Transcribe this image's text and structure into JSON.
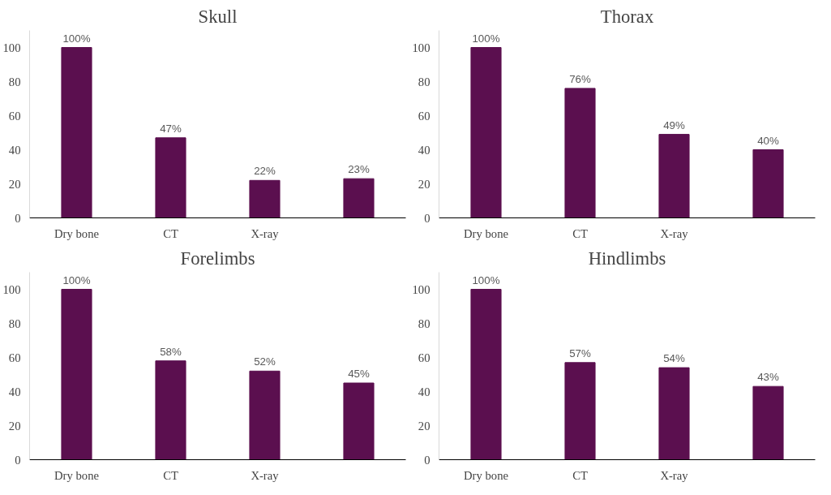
{
  "chart_data": [
    {
      "type": "bar",
      "title": "Skull",
      "categories": [
        "Dry bone",
        "CT",
        "X-ray",
        null
      ],
      "values": [
        100,
        47,
        22,
        23
      ],
      "value_labels": [
        "100%",
        "47%",
        "22%",
        "23%"
      ],
      "color": "#5b0f4f",
      "ylim": [
        0,
        110
      ],
      "yticks": [
        0,
        20,
        40,
        60,
        80,
        100
      ],
      "grid": false
    },
    {
      "type": "bar",
      "title": "Thorax",
      "categories": [
        "Dry bone",
        "CT",
        "X-ray",
        null
      ],
      "values": [
        100,
        76,
        49,
        40
      ],
      "value_labels": [
        "100%",
        "76%",
        "49%",
        "40%"
      ],
      "color": "#5b0f4f",
      "ylim": [
        0,
        110
      ],
      "yticks": [
        0,
        20,
        40,
        60,
        80,
        100
      ],
      "grid": false
    },
    {
      "type": "bar",
      "title": "Forelimbs",
      "categories": [
        "Dry bone",
        "CT",
        "X-ray",
        null
      ],
      "values": [
        100,
        58,
        52,
        45
      ],
      "value_labels": [
        "100%",
        "58%",
        "52%",
        "45%"
      ],
      "color": "#5b0f4f",
      "ylim": [
        0,
        110
      ],
      "yticks": [
        0,
        20,
        40,
        60,
        80,
        100
      ],
      "grid": false
    },
    {
      "type": "bar",
      "title": "Hindlimbs",
      "categories": [
        "Dry bone",
        "CT",
        "X-ray",
        null
      ],
      "values": [
        100,
        57,
        54,
        43
      ],
      "value_labels": [
        "100%",
        "57%",
        "54%",
        "43%"
      ],
      "color": "#5b0f4f",
      "ylim": [
        0,
        110
      ],
      "yticks": [
        0,
        20,
        40,
        60,
        80,
        100
      ],
      "grid": false
    }
  ]
}
